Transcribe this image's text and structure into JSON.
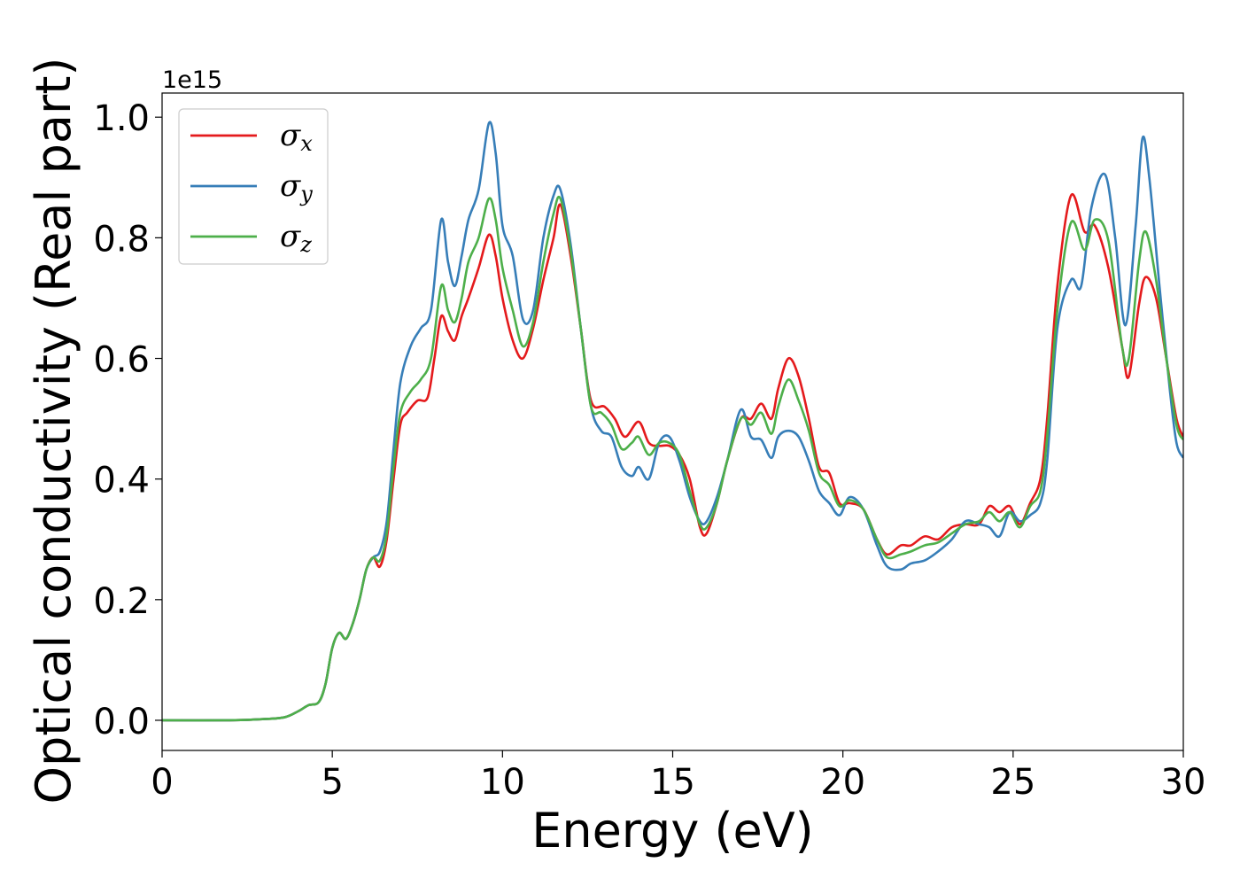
{
  "chart_data": {
    "type": "line",
    "xlabel": "Energy (eV)",
    "ylabel": "Optical conductivity (Real part)",
    "y_offset_label": "1e15",
    "xlim": [
      0,
      30
    ],
    "ylim": [
      -0.05,
      1.04
    ],
    "x_ticks": [
      0,
      5,
      10,
      15,
      20,
      25,
      30
    ],
    "x_tick_labels": [
      "0",
      "5",
      "10",
      "15",
      "20",
      "25",
      "30"
    ],
    "y_ticks": [
      0.0,
      0.2,
      0.4,
      0.6,
      0.8,
      1.0
    ],
    "y_tick_labels": [
      "0.0",
      "0.2",
      "0.4",
      "0.6",
      "0.8",
      "1.0"
    ],
    "grid": false,
    "legend_position": "top-left",
    "series": [
      {
        "name": "σx",
        "base": "σ",
        "sub": "x",
        "color": "#e41a1c",
        "points": [
          [
            0,
            0
          ],
          [
            2,
            0
          ],
          [
            3,
            0.002
          ],
          [
            3.6,
            0.005
          ],
          [
            4,
            0.015
          ],
          [
            4.3,
            0.025
          ],
          [
            4.6,
            0.03
          ],
          [
            4.8,
            0.06
          ],
          [
            5.0,
            0.12
          ],
          [
            5.2,
            0.145
          ],
          [
            5.4,
            0.135
          ],
          [
            5.6,
            0.16
          ],
          [
            5.8,
            0.2
          ],
          [
            6.0,
            0.25
          ],
          [
            6.2,
            0.27
          ],
          [
            6.4,
            0.255
          ],
          [
            6.6,
            0.3
          ],
          [
            6.8,
            0.4
          ],
          [
            7.0,
            0.49
          ],
          [
            7.2,
            0.51
          ],
          [
            7.5,
            0.53
          ],
          [
            7.8,
            0.535
          ],
          [
            8.0,
            0.6
          ],
          [
            8.2,
            0.67
          ],
          [
            8.4,
            0.645
          ],
          [
            8.6,
            0.63
          ],
          [
            8.8,
            0.67
          ],
          [
            9.0,
            0.7
          ],
          [
            9.3,
            0.75
          ],
          [
            9.6,
            0.805
          ],
          [
            9.8,
            0.77
          ],
          [
            10.0,
            0.7
          ],
          [
            10.3,
            0.63
          ],
          [
            10.6,
            0.6
          ],
          [
            10.9,
            0.65
          ],
          [
            11.2,
            0.73
          ],
          [
            11.5,
            0.8
          ],
          [
            11.7,
            0.855
          ],
          [
            12.0,
            0.77
          ],
          [
            12.3,
            0.65
          ],
          [
            12.6,
            0.53
          ],
          [
            13.0,
            0.52
          ],
          [
            13.3,
            0.5
          ],
          [
            13.6,
            0.47
          ],
          [
            14.0,
            0.495
          ],
          [
            14.3,
            0.46
          ],
          [
            14.6,
            0.455
          ],
          [
            14.9,
            0.455
          ],
          [
            15.2,
            0.44
          ],
          [
            15.5,
            0.4
          ],
          [
            15.8,
            0.32
          ],
          [
            16.0,
            0.31
          ],
          [
            16.3,
            0.36
          ],
          [
            16.6,
            0.43
          ],
          [
            17.0,
            0.5
          ],
          [
            17.3,
            0.5
          ],
          [
            17.6,
            0.525
          ],
          [
            17.9,
            0.5
          ],
          [
            18.1,
            0.55
          ],
          [
            18.4,
            0.6
          ],
          [
            18.7,
            0.57
          ],
          [
            19.0,
            0.5
          ],
          [
            19.3,
            0.42
          ],
          [
            19.6,
            0.41
          ],
          [
            19.9,
            0.36
          ],
          [
            20.2,
            0.36
          ],
          [
            20.6,
            0.35
          ],
          [
            21.0,
            0.3
          ],
          [
            21.3,
            0.275
          ],
          [
            21.7,
            0.29
          ],
          [
            22.0,
            0.29
          ],
          [
            22.4,
            0.305
          ],
          [
            22.8,
            0.3
          ],
          [
            23.2,
            0.32
          ],
          [
            23.6,
            0.325
          ],
          [
            24.0,
            0.325
          ],
          [
            24.3,
            0.355
          ],
          [
            24.6,
            0.345
          ],
          [
            24.9,
            0.355
          ],
          [
            25.2,
            0.325
          ],
          [
            25.5,
            0.36
          ],
          [
            25.8,
            0.4
          ],
          [
            26.0,
            0.5
          ],
          [
            26.3,
            0.72
          ],
          [
            26.7,
            0.87
          ],
          [
            27.1,
            0.81
          ],
          [
            27.4,
            0.82
          ],
          [
            27.8,
            0.75
          ],
          [
            28.2,
            0.62
          ],
          [
            28.4,
            0.57
          ],
          [
            28.7,
            0.69
          ],
          [
            28.9,
            0.735
          ],
          [
            29.2,
            0.7
          ],
          [
            29.5,
            0.6
          ],
          [
            29.8,
            0.5
          ],
          [
            30.0,
            0.47
          ]
        ]
      },
      {
        "name": "σy",
        "base": "σ",
        "sub": "y",
        "color": "#377eb8",
        "points": [
          [
            0,
            0
          ],
          [
            2,
            0
          ],
          [
            3,
            0.002
          ],
          [
            3.6,
            0.005
          ],
          [
            4,
            0.015
          ],
          [
            4.3,
            0.025
          ],
          [
            4.6,
            0.03
          ],
          [
            4.8,
            0.06
          ],
          [
            5.0,
            0.12
          ],
          [
            5.2,
            0.145
          ],
          [
            5.4,
            0.135
          ],
          [
            5.6,
            0.16
          ],
          [
            5.8,
            0.2
          ],
          [
            6.0,
            0.25
          ],
          [
            6.2,
            0.27
          ],
          [
            6.4,
            0.28
          ],
          [
            6.6,
            0.33
          ],
          [
            6.8,
            0.45
          ],
          [
            7.0,
            0.56
          ],
          [
            7.3,
            0.62
          ],
          [
            7.6,
            0.65
          ],
          [
            7.9,
            0.68
          ],
          [
            8.2,
            0.83
          ],
          [
            8.4,
            0.76
          ],
          [
            8.6,
            0.72
          ],
          [
            8.8,
            0.77
          ],
          [
            9.0,
            0.83
          ],
          [
            9.3,
            0.88
          ],
          [
            9.6,
            0.99
          ],
          [
            9.8,
            0.94
          ],
          [
            10.0,
            0.82
          ],
          [
            10.3,
            0.77
          ],
          [
            10.6,
            0.665
          ],
          [
            10.9,
            0.68
          ],
          [
            11.2,
            0.8
          ],
          [
            11.5,
            0.87
          ],
          [
            11.7,
            0.88
          ],
          [
            12.0,
            0.79
          ],
          [
            12.3,
            0.65
          ],
          [
            12.6,
            0.52
          ],
          [
            12.9,
            0.48
          ],
          [
            13.2,
            0.47
          ],
          [
            13.5,
            0.42
          ],
          [
            13.8,
            0.405
          ],
          [
            14.0,
            0.42
          ],
          [
            14.3,
            0.4
          ],
          [
            14.6,
            0.46
          ],
          [
            14.9,
            0.47
          ],
          [
            15.2,
            0.43
          ],
          [
            15.5,
            0.37
          ],
          [
            15.8,
            0.33
          ],
          [
            16.0,
            0.33
          ],
          [
            16.3,
            0.37
          ],
          [
            16.6,
            0.43
          ],
          [
            17.0,
            0.515
          ],
          [
            17.3,
            0.47
          ],
          [
            17.6,
            0.465
          ],
          [
            17.9,
            0.435
          ],
          [
            18.1,
            0.47
          ],
          [
            18.4,
            0.48
          ],
          [
            18.7,
            0.47
          ],
          [
            19.0,
            0.43
          ],
          [
            19.3,
            0.38
          ],
          [
            19.6,
            0.36
          ],
          [
            19.9,
            0.34
          ],
          [
            20.2,
            0.37
          ],
          [
            20.6,
            0.35
          ],
          [
            21.0,
            0.29
          ],
          [
            21.3,
            0.255
          ],
          [
            21.7,
            0.25
          ],
          [
            22.0,
            0.26
          ],
          [
            22.4,
            0.265
          ],
          [
            22.8,
            0.28
          ],
          [
            23.2,
            0.3
          ],
          [
            23.6,
            0.33
          ],
          [
            24.0,
            0.325
          ],
          [
            24.3,
            0.32
          ],
          [
            24.6,
            0.305
          ],
          [
            24.9,
            0.345
          ],
          [
            25.2,
            0.33
          ],
          [
            25.5,
            0.34
          ],
          [
            25.8,
            0.36
          ],
          [
            26.0,
            0.43
          ],
          [
            26.3,
            0.65
          ],
          [
            26.7,
            0.73
          ],
          [
            27.0,
            0.72
          ],
          [
            27.3,
            0.85
          ],
          [
            27.7,
            0.905
          ],
          [
            28.0,
            0.8
          ],
          [
            28.3,
            0.655
          ],
          [
            28.6,
            0.82
          ],
          [
            28.8,
            0.965
          ],
          [
            29.0,
            0.9
          ],
          [
            29.3,
            0.72
          ],
          [
            29.6,
            0.55
          ],
          [
            29.8,
            0.46
          ],
          [
            30.0,
            0.435
          ]
        ]
      },
      {
        "name": "σz",
        "base": "σ",
        "sub": "z",
        "color": "#4daf4a",
        "points": [
          [
            0,
            0
          ],
          [
            2,
            0
          ],
          [
            3,
            0.002
          ],
          [
            3.6,
            0.005
          ],
          [
            4,
            0.015
          ],
          [
            4.3,
            0.025
          ],
          [
            4.6,
            0.03
          ],
          [
            4.8,
            0.06
          ],
          [
            5.0,
            0.12
          ],
          [
            5.2,
            0.145
          ],
          [
            5.4,
            0.135
          ],
          [
            5.6,
            0.16
          ],
          [
            5.8,
            0.2
          ],
          [
            6.0,
            0.25
          ],
          [
            6.2,
            0.27
          ],
          [
            6.4,
            0.265
          ],
          [
            6.6,
            0.31
          ],
          [
            6.8,
            0.42
          ],
          [
            7.0,
            0.51
          ],
          [
            7.3,
            0.545
          ],
          [
            7.6,
            0.565
          ],
          [
            7.9,
            0.6
          ],
          [
            8.2,
            0.72
          ],
          [
            8.4,
            0.68
          ],
          [
            8.6,
            0.66
          ],
          [
            8.8,
            0.7
          ],
          [
            9.0,
            0.76
          ],
          [
            9.3,
            0.8
          ],
          [
            9.6,
            0.865
          ],
          [
            9.8,
            0.83
          ],
          [
            10.0,
            0.75
          ],
          [
            10.3,
            0.68
          ],
          [
            10.6,
            0.62
          ],
          [
            10.9,
            0.66
          ],
          [
            11.2,
            0.76
          ],
          [
            11.5,
            0.84
          ],
          [
            11.7,
            0.865
          ],
          [
            12.0,
            0.78
          ],
          [
            12.3,
            0.65
          ],
          [
            12.6,
            0.52
          ],
          [
            12.9,
            0.51
          ],
          [
            13.2,
            0.49
          ],
          [
            13.5,
            0.45
          ],
          [
            13.8,
            0.46
          ],
          [
            14.0,
            0.47
          ],
          [
            14.3,
            0.44
          ],
          [
            14.6,
            0.46
          ],
          [
            14.9,
            0.46
          ],
          [
            15.2,
            0.44
          ],
          [
            15.5,
            0.38
          ],
          [
            15.8,
            0.325
          ],
          [
            16.0,
            0.32
          ],
          [
            16.3,
            0.36
          ],
          [
            16.6,
            0.43
          ],
          [
            17.0,
            0.5
          ],
          [
            17.3,
            0.49
          ],
          [
            17.6,
            0.51
          ],
          [
            17.9,
            0.475
          ],
          [
            18.1,
            0.52
          ],
          [
            18.4,
            0.565
          ],
          [
            18.7,
            0.53
          ],
          [
            19.0,
            0.48
          ],
          [
            19.3,
            0.41
          ],
          [
            19.6,
            0.39
          ],
          [
            19.9,
            0.355
          ],
          [
            20.2,
            0.365
          ],
          [
            20.6,
            0.35
          ],
          [
            21.0,
            0.3
          ],
          [
            21.3,
            0.27
          ],
          [
            21.7,
            0.275
          ],
          [
            22.0,
            0.28
          ],
          [
            22.4,
            0.29
          ],
          [
            22.8,
            0.295
          ],
          [
            23.2,
            0.31
          ],
          [
            23.6,
            0.325
          ],
          [
            24.0,
            0.33
          ],
          [
            24.3,
            0.345
          ],
          [
            24.6,
            0.33
          ],
          [
            24.9,
            0.345
          ],
          [
            25.2,
            0.32
          ],
          [
            25.5,
            0.355
          ],
          [
            25.8,
            0.38
          ],
          [
            26.0,
            0.47
          ],
          [
            26.3,
            0.68
          ],
          [
            26.7,
            0.825
          ],
          [
            27.1,
            0.78
          ],
          [
            27.4,
            0.83
          ],
          [
            27.8,
            0.795
          ],
          [
            28.2,
            0.62
          ],
          [
            28.4,
            0.6
          ],
          [
            28.7,
            0.76
          ],
          [
            28.9,
            0.81
          ],
          [
            29.2,
            0.73
          ],
          [
            29.5,
            0.6
          ],
          [
            29.8,
            0.49
          ],
          [
            30.0,
            0.465
          ]
        ]
      }
    ]
  }
}
